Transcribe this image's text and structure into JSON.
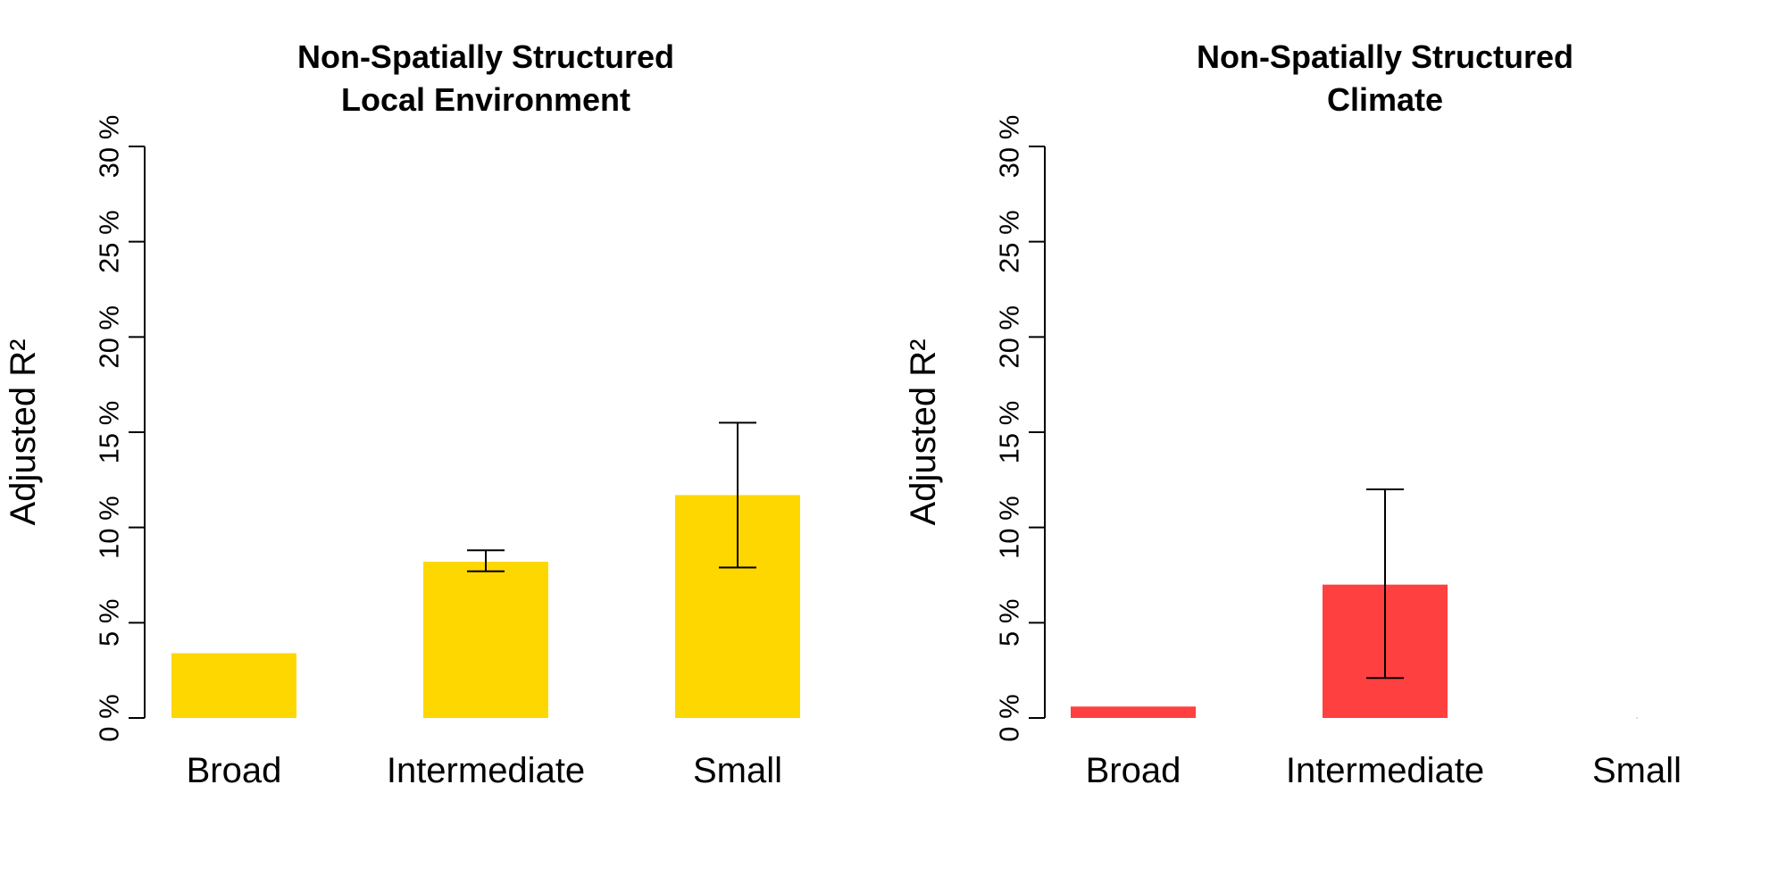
{
  "chart_data": [
    {
      "type": "bar",
      "title": "Non-Spatially Structured\nLocal Environment",
      "ylabel": "Adjusted R²",
      "xlabel": "",
      "categories": [
        "Broad",
        "Intermediate",
        "Small"
      ],
      "values": [
        3.4,
        8.2,
        11.7
      ],
      "error_low": [
        null,
        7.7,
        7.9
      ],
      "error_high": [
        null,
        8.8,
        15.5
      ],
      "ylim": [
        0,
        30
      ],
      "yticks": [
        0,
        5,
        10,
        15,
        20,
        25,
        30
      ],
      "ytick_labels": [
        "0 %",
        "5 %",
        "10 %",
        "15 %",
        "20 %",
        "25 %",
        "30 %"
      ],
      "bar_color": "#FFD700",
      "grid": false,
      "legend": "none"
    },
    {
      "type": "bar",
      "title": "Non-Spatially Structured\nClimate",
      "ylabel": "Adjusted R²",
      "xlabel": "",
      "categories": [
        "Broad",
        "Intermediate",
        "Small"
      ],
      "values": [
        0.6,
        7.0,
        0.0
      ],
      "error_low": [
        null,
        2.1,
        null
      ],
      "error_high": [
        null,
        12.0,
        null
      ],
      "ylim": [
        0,
        30
      ],
      "yticks": [
        0,
        5,
        10,
        15,
        20,
        25,
        30
      ],
      "ytick_labels": [
        "0 %",
        "5 %",
        "10 %",
        "15 %",
        "20 %",
        "25 %",
        "30 %"
      ],
      "bar_color": "#FF4040",
      "grid": false,
      "legend": "none"
    }
  ]
}
